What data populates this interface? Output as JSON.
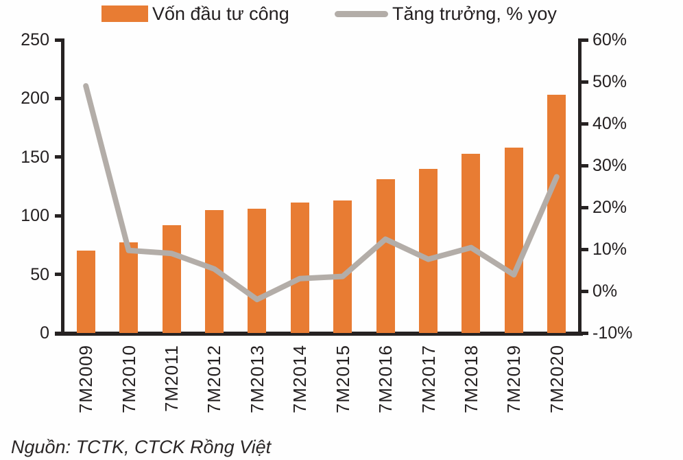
{
  "source_note": "Nguồn: TCTK, CTCK Rồng Việt",
  "colors": {
    "bar": "#e87c33",
    "line": "#b3ada8",
    "axis": "#262222",
    "text": "#231f20"
  },
  "chart_data": {
    "type": "bar",
    "subtype": "bar+line combo, dual axis",
    "categories": [
      "7M2009",
      "7M2010",
      "7M2011",
      "7M2012",
      "7M2013",
      "7M2014",
      "7M2015",
      "7M2016",
      "7M2017",
      "7M2018",
      "7M2019",
      "7M2020"
    ],
    "series": [
      {
        "name": "Vốn đầu tư công",
        "type": "bar",
        "axis": "left",
        "color": "#e87c33",
        "values": [
          70,
          77,
          92,
          105,
          106,
          111,
          113,
          131,
          140,
          153,
          158,
          203
        ]
      },
      {
        "name": "Tăng trưởng, % yoy",
        "type": "line",
        "axis": "right",
        "color": "#b3ada8",
        "values": [
          49,
          9.7,
          9,
          5.3,
          -2,
          3,
          3.5,
          12.4,
          7.6,
          10.4,
          3.9,
          27.3
        ]
      }
    ],
    "left_axis": {
      "min": 0,
      "max": 250,
      "step": 50,
      "tick_labels": [
        "0",
        "50",
        "100",
        "150",
        "200",
        "250"
      ]
    },
    "right_axis": {
      "min": -10,
      "max": 60,
      "step": 10,
      "tick_labels": [
        "-10%",
        "0%",
        "10%",
        "20%",
        "30%",
        "40%",
        "50%",
        "60%"
      ]
    },
    "grid": false,
    "legend_position": "top",
    "title": "",
    "xlabel": "",
    "ylabel_left": "",
    "ylabel_right": ""
  }
}
